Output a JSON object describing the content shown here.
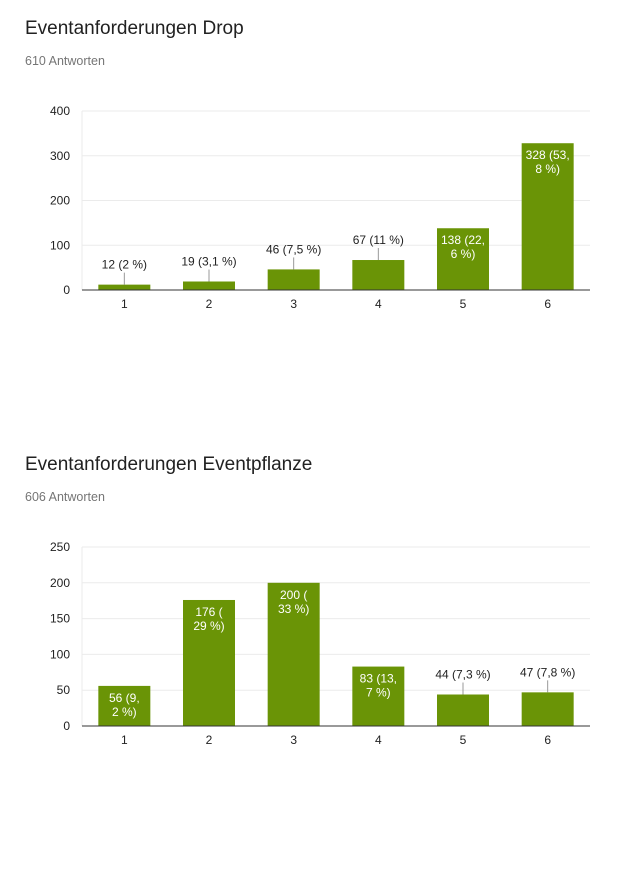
{
  "charts": [
    {
      "heading": "Eventanforderungen Drop",
      "responses": "610 Antworten"
    },
    {
      "heading": "Eventanforderungen Eventpflanze",
      "responses": "606 Antworten"
    }
  ],
  "colors": {
    "bar": "#6a9406",
    "grid": "#ebebeb",
    "axis": "#333333",
    "label_dark": "#222222",
    "label_light": "#ffffff"
  },
  "chart_data": [
    {
      "type": "bar",
      "title": "Eventanforderungen Drop",
      "subtitle": "610 Antworten",
      "categories": [
        "1",
        "2",
        "3",
        "4",
        "5",
        "6"
      ],
      "values": [
        12,
        19,
        46,
        67,
        138,
        328
      ],
      "data_labels": [
        "12 (2 %)",
        "19 (3,1 %)",
        "46 (7,5 %)",
        "67 (11 %)",
        "138 (22,|6 %)",
        "328 (53,|8 %)"
      ],
      "label_inside": [
        false,
        false,
        false,
        false,
        true,
        true
      ],
      "yticks": [
        0,
        100,
        200,
        300,
        400
      ],
      "ylim": [
        0,
        400
      ],
      "grid": true
    },
    {
      "type": "bar",
      "title": "Eventanforderungen Eventpflanze",
      "subtitle": "606 Antworten",
      "categories": [
        "1",
        "2",
        "3",
        "4",
        "5",
        "6"
      ],
      "values": [
        56,
        176,
        200,
        83,
        44,
        47
      ],
      "data_labels": [
        "56 (9,|2 %)",
        "176 (|29 %)",
        "200 (|33 %)",
        "83 (13,|7 %)",
        "44 (7,3 %)",
        "47 (7,8 %)"
      ],
      "label_inside": [
        true,
        true,
        true,
        true,
        false,
        false
      ],
      "yticks": [
        0,
        50,
        100,
        150,
        200,
        250
      ],
      "ylim": [
        0,
        250
      ],
      "grid": true
    }
  ]
}
